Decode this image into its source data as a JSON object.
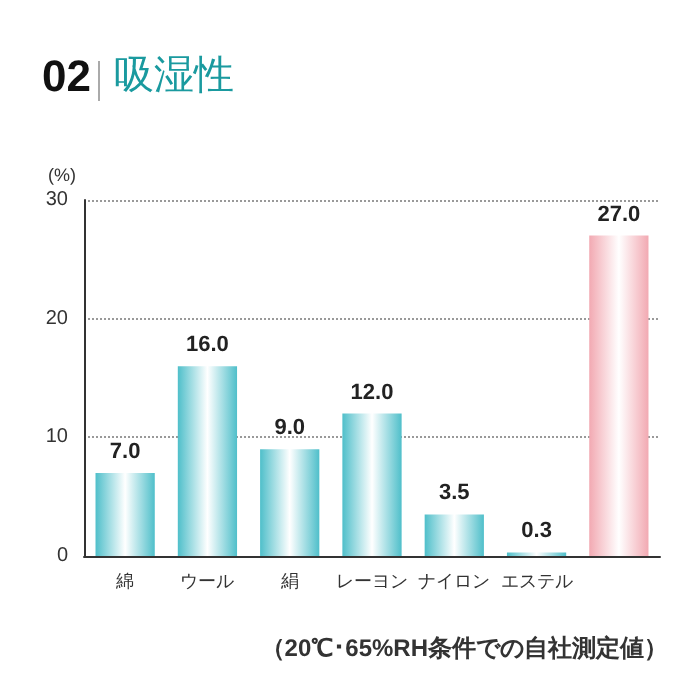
{
  "chart_data": {
    "type": "bar",
    "title": "02",
    "subtitle": "吸湿性",
    "ylabel": "(%)",
    "categories": [
      "綿",
      "ウール",
      "絹",
      "レーヨン",
      "ナイロン",
      "エステル",
      null
    ],
    "values": [
      7.0,
      16.0,
      9.0,
      12.0,
      3.5,
      0.3,
      27.0
    ],
    "colors": [
      "#4fbfca",
      "#4fbfca",
      "#4fbfca",
      "#4fbfca",
      "#4fbfca",
      "#4fbfca",
      "#f2a9b2"
    ],
    "value_labels": [
      "7.0",
      "16.0",
      "9.0",
      "12.0",
      "3.5",
      "0.3",
      "27.0"
    ],
    "ylim": [
      0,
      30
    ],
    "yticks": [
      0,
      10,
      20,
      30
    ],
    "grid": "y",
    "annotations": [
      "（20℃･65%RH条件での自社測定値）"
    ]
  }
}
